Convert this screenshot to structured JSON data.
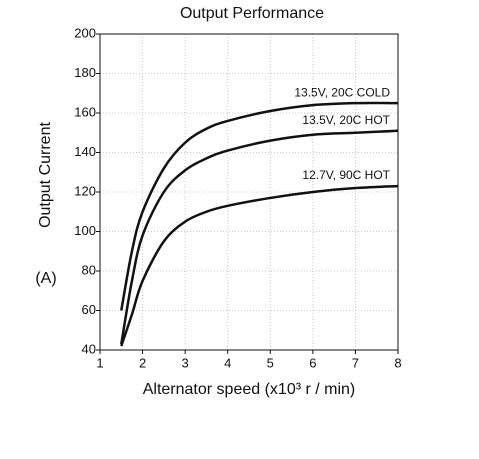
{
  "chart_data": {
    "type": "line",
    "title": "Output Performance",
    "x_label": "Alternator speed (x10³ r / min)",
    "y_label": "Output Current",
    "y_unit": "(A)",
    "xlim": [
      1,
      8
    ],
    "xticks": [
      1,
      2,
      3,
      4,
      5,
      6,
      7,
      8
    ],
    "ylim": [
      40,
      200
    ],
    "yticks": [
      40,
      60,
      80,
      100,
      120,
      140,
      160,
      180,
      200
    ],
    "grid": true,
    "x": [
      1.5,
      1.75,
      2,
      2.5,
      3,
      3.5,
      4,
      5,
      6,
      7,
      8
    ],
    "series": [
      {
        "name": "13.5V, 20C COLD",
        "color": "#111111",
        "values": [
          60,
          90,
          110,
          132,
          145,
          152,
          156,
          161,
          164,
          165,
          165
        ]
      },
      {
        "name": "13.5V, 20C HOT",
        "color": "#111111",
        "values": [
          43,
          75,
          98,
          120,
          131,
          137,
          141,
          146,
          149,
          150,
          151
        ]
      },
      {
        "name": "12.7V, 90C HOT",
        "color": "#111111",
        "values": [
          42,
          58,
          75,
          95,
          105,
          110,
          113,
          117,
          120,
          122,
          123
        ]
      }
    ]
  }
}
